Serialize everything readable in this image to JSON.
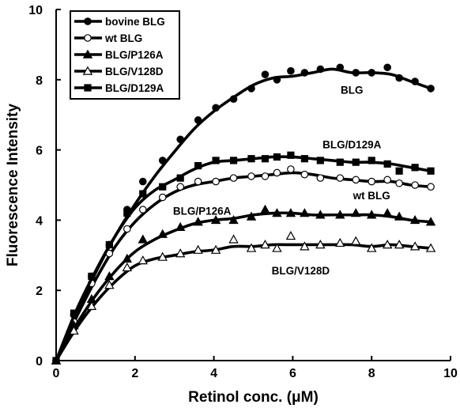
{
  "chart_data": {
    "type": "line",
    "xlabel": "Retinol conc. (μM)",
    "ylabel": "Fluorescence Intensity",
    "xlim": [
      0,
      10
    ],
    "ylim": [
      0,
      10
    ],
    "x_ticks": [
      "0",
      "2",
      "4",
      "6",
      "8",
      "10"
    ],
    "y_ticks": [
      "0",
      "2",
      "4",
      "6",
      "8",
      "10"
    ],
    "grid": false,
    "legend_position": "top-left",
    "series": [
      {
        "name": "bovine BLG",
        "marker": "filled-circle",
        "points": [
          [
            0,
            0
          ],
          [
            0.45,
            1.3
          ],
          [
            0.9,
            2.4
          ],
          [
            1.35,
            3.3
          ],
          [
            1.8,
            4.3
          ],
          [
            2.2,
            5.1
          ],
          [
            2.7,
            5.7
          ],
          [
            3.15,
            6.3
          ],
          [
            3.6,
            6.85
          ],
          [
            4.05,
            7.2
          ],
          [
            4.5,
            7.45
          ],
          [
            4.95,
            7.75
          ],
          [
            5.3,
            8.15
          ],
          [
            5.6,
            8.0
          ],
          [
            5.95,
            8.25
          ],
          [
            6.3,
            8.2
          ],
          [
            6.7,
            8.3
          ],
          [
            7.2,
            8.35
          ],
          [
            7.6,
            8.2
          ],
          [
            8.0,
            8.2
          ],
          [
            8.4,
            8.35
          ],
          [
            8.7,
            8.05
          ],
          [
            9.1,
            7.95
          ],
          [
            9.5,
            7.75
          ]
        ],
        "curve": [
          [
            0,
            0
          ],
          [
            0.5,
            1.3
          ],
          [
            1,
            2.5
          ],
          [
            1.5,
            3.55
          ],
          [
            2,
            4.45
          ],
          [
            2.5,
            5.25
          ],
          [
            3,
            5.95
          ],
          [
            3.5,
            6.6
          ],
          [
            4,
            7.1
          ],
          [
            4.5,
            7.5
          ],
          [
            5,
            7.85
          ],
          [
            5.5,
            8.05
          ],
          [
            6,
            8.1
          ],
          [
            6.5,
            8.2
          ],
          [
            7,
            8.3
          ],
          [
            7.5,
            8.2
          ],
          [
            8,
            8.2
          ],
          [
            8.5,
            8.15
          ],
          [
            9,
            7.95
          ],
          [
            9.5,
            7.75
          ]
        ]
      },
      {
        "name": "wt BLG",
        "marker": "open-circle",
        "points": [
          [
            0,
            0
          ],
          [
            0.45,
            1.1
          ],
          [
            0.9,
            2.2
          ],
          [
            1.35,
            3.05
          ],
          [
            1.8,
            3.75
          ],
          [
            2.2,
            4.3
          ],
          [
            2.7,
            4.65
          ],
          [
            3.15,
            4.95
          ],
          [
            3.6,
            5.1
          ],
          [
            4.05,
            5.1
          ],
          [
            4.5,
            5.2
          ],
          [
            4.95,
            5.25
          ],
          [
            5.3,
            5.25
          ],
          [
            5.6,
            5.35
          ],
          [
            5.95,
            5.45
          ],
          [
            6.3,
            5.3
          ],
          [
            6.7,
            5.2
          ],
          [
            7.2,
            5.2
          ],
          [
            7.6,
            5.15
          ],
          [
            8.0,
            5.1
          ],
          [
            8.4,
            5.15
          ],
          [
            8.7,
            5.05
          ],
          [
            9.1,
            5.0
          ],
          [
            9.5,
            4.95
          ]
        ],
        "curve": [
          [
            0,
            0
          ],
          [
            0.5,
            1.2
          ],
          [
            1,
            2.3
          ],
          [
            1.5,
            3.25
          ],
          [
            2,
            3.95
          ],
          [
            2.5,
            4.45
          ],
          [
            3,
            4.8
          ],
          [
            3.5,
            5.0
          ],
          [
            4,
            5.1
          ],
          [
            4.5,
            5.2
          ],
          [
            5,
            5.25
          ],
          [
            5.5,
            5.3
          ],
          [
            6,
            5.35
          ],
          [
            6.5,
            5.3
          ],
          [
            7,
            5.2
          ],
          [
            7.5,
            5.15
          ],
          [
            8,
            5.1
          ],
          [
            8.5,
            5.1
          ],
          [
            9,
            5.0
          ],
          [
            9.5,
            4.95
          ]
        ]
      },
      {
        "name": "BLG/P126A",
        "marker": "filled-triangle",
        "points": [
          [
            0,
            0
          ],
          [
            0.45,
            1.0
          ],
          [
            0.9,
            1.75
          ],
          [
            1.35,
            2.4
          ],
          [
            1.8,
            2.9
          ],
          [
            2.2,
            3.45
          ],
          [
            2.7,
            3.6
          ],
          [
            3.15,
            3.8
          ],
          [
            3.6,
            3.95
          ],
          [
            4.05,
            4.0
          ],
          [
            4.5,
            4.0
          ],
          [
            4.95,
            4.1
          ],
          [
            5.3,
            4.3
          ],
          [
            5.6,
            4.2
          ],
          [
            5.95,
            4.2
          ],
          [
            6.3,
            4.2
          ],
          [
            6.7,
            4.15
          ],
          [
            7.2,
            4.15
          ],
          [
            7.6,
            4.2
          ],
          [
            8.0,
            4.15
          ],
          [
            8.4,
            4.2
          ],
          [
            8.7,
            4.1
          ],
          [
            9.1,
            4.0
          ],
          [
            9.5,
            3.95
          ]
        ],
        "curve": [
          [
            0,
            0
          ],
          [
            0.5,
            1.0
          ],
          [
            1,
            1.85
          ],
          [
            1.5,
            2.55
          ],
          [
            2,
            3.1
          ],
          [
            2.5,
            3.45
          ],
          [
            3,
            3.7
          ],
          [
            3.5,
            3.9
          ],
          [
            4,
            4.0
          ],
          [
            4.5,
            4.05
          ],
          [
            5,
            4.15
          ],
          [
            5.5,
            4.2
          ],
          [
            6,
            4.2
          ],
          [
            6.5,
            4.15
          ],
          [
            7,
            4.15
          ],
          [
            7.5,
            4.15
          ],
          [
            8,
            4.15
          ],
          [
            8.5,
            4.1
          ],
          [
            9,
            4.0
          ],
          [
            9.5,
            3.95
          ]
        ]
      },
      {
        "name": "BLG/V128D",
        "marker": "open-triangle",
        "points": [
          [
            0,
            0
          ],
          [
            0.45,
            0.85
          ],
          [
            0.9,
            1.55
          ],
          [
            1.35,
            2.15
          ],
          [
            1.8,
            2.65
          ],
          [
            2.2,
            2.85
          ],
          [
            2.7,
            2.95
          ],
          [
            3.15,
            3.05
          ],
          [
            3.6,
            3.15
          ],
          [
            4.05,
            3.15
          ],
          [
            4.5,
            3.45
          ],
          [
            4.95,
            3.2
          ],
          [
            5.3,
            3.3
          ],
          [
            5.6,
            3.2
          ],
          [
            5.95,
            3.55
          ],
          [
            6.3,
            3.25
          ],
          [
            6.7,
            3.3
          ],
          [
            7.2,
            3.35
          ],
          [
            7.6,
            3.4
          ],
          [
            8.0,
            3.2
          ],
          [
            8.4,
            3.3
          ],
          [
            8.7,
            3.3
          ],
          [
            9.1,
            3.25
          ],
          [
            9.5,
            3.2
          ]
        ],
        "curve": [
          [
            0,
            0
          ],
          [
            0.5,
            0.9
          ],
          [
            1,
            1.65
          ],
          [
            1.5,
            2.25
          ],
          [
            2,
            2.7
          ],
          [
            2.5,
            2.9
          ],
          [
            3,
            3.0
          ],
          [
            3.5,
            3.1
          ],
          [
            4,
            3.15
          ],
          [
            4.5,
            3.25
          ],
          [
            5,
            3.25
          ],
          [
            5.5,
            3.3
          ],
          [
            6,
            3.3
          ],
          [
            6.5,
            3.3
          ],
          [
            7,
            3.3
          ],
          [
            7.5,
            3.3
          ],
          [
            8,
            3.25
          ],
          [
            8.5,
            3.3
          ],
          [
            9,
            3.25
          ],
          [
            9.5,
            3.2
          ]
        ]
      },
      {
        "name": "BLG/D129A",
        "marker": "filled-square",
        "points": [
          [
            0,
            0
          ],
          [
            0.45,
            1.35
          ],
          [
            0.9,
            2.4
          ],
          [
            1.35,
            3.3
          ],
          [
            1.8,
            4.2
          ],
          [
            2.2,
            4.75
          ],
          [
            2.7,
            4.95
          ],
          [
            3.15,
            5.2
          ],
          [
            3.6,
            5.55
          ],
          [
            4.05,
            5.7
          ],
          [
            4.5,
            5.7
          ],
          [
            4.95,
            5.75
          ],
          [
            5.3,
            5.75
          ],
          [
            5.6,
            5.8
          ],
          [
            5.95,
            5.85
          ],
          [
            6.3,
            5.75
          ],
          [
            6.7,
            5.7
          ],
          [
            7.2,
            5.65
          ],
          [
            7.6,
            5.65
          ],
          [
            8.0,
            5.7
          ],
          [
            8.4,
            5.6
          ],
          [
            8.7,
            5.4
          ],
          [
            9.1,
            5.5
          ],
          [
            9.5,
            5.4
          ]
        ],
        "curve": [
          [
            0,
            0
          ],
          [
            0.5,
            1.4
          ],
          [
            1,
            2.55
          ],
          [
            1.5,
            3.55
          ],
          [
            2,
            4.35
          ],
          [
            2.5,
            4.85
          ],
          [
            3,
            5.15
          ],
          [
            3.5,
            5.45
          ],
          [
            4,
            5.65
          ],
          [
            4.5,
            5.7
          ],
          [
            5,
            5.75
          ],
          [
            5.5,
            5.8
          ],
          [
            6,
            5.8
          ],
          [
            6.5,
            5.75
          ],
          [
            7,
            5.7
          ],
          [
            7.5,
            5.65
          ],
          [
            8,
            5.65
          ],
          [
            8.5,
            5.6
          ],
          [
            9,
            5.5
          ],
          [
            9.5,
            5.4
          ]
        ]
      }
    ],
    "annotations": [
      {
        "text": "BLG",
        "x": 7.5,
        "y": 7.6
      },
      {
        "text": "BLG/D129A",
        "x": 7.5,
        "y": 6.05
      },
      {
        "text": "wt BLG",
        "x": 8.0,
        "y": 4.6
      },
      {
        "text": "BLG/P126A",
        "x": 3.7,
        "y": 4.15
      },
      {
        "text": "BLG/V128D",
        "x": 6.2,
        "y": 2.45
      }
    ]
  }
}
